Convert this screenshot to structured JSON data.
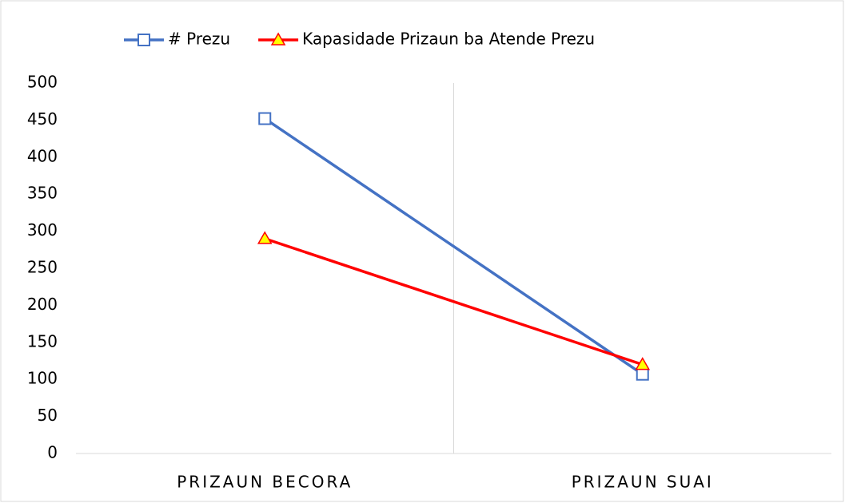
{
  "chart_data": {
    "type": "line",
    "categories": [
      "PRIZAUN BECORA",
      "PRIZAUN SUAI"
    ],
    "series": [
      {
        "name": "# Prezu",
        "color": "#4472c4",
        "marker": "square",
        "values": [
          452,
          107
        ]
      },
      {
        "name": "Kapasidade Prizaun ba Atende Prezu",
        "color": "#ff0000",
        "marker": "triangle",
        "values": [
          290,
          120
        ]
      }
    ],
    "ylim": [
      0,
      500
    ],
    "yticks": [
      0,
      50,
      100,
      150,
      200,
      250,
      300,
      350,
      400,
      450,
      500
    ],
    "grid": false,
    "legend": "top"
  }
}
